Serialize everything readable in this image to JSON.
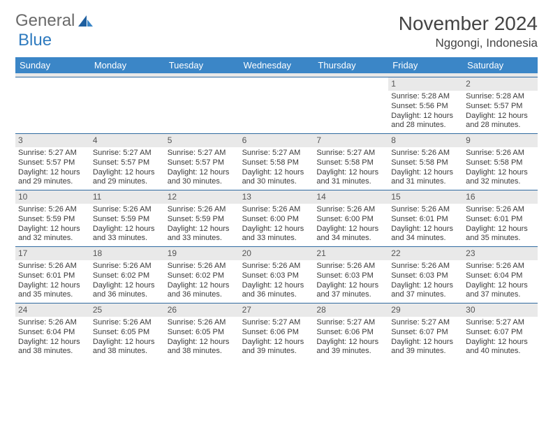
{
  "brand": {
    "part1": "General",
    "part2": "Blue"
  },
  "title": "November 2024",
  "location": "Nggongi, Indonesia",
  "weekdays": [
    "Sunday",
    "Monday",
    "Tuesday",
    "Wednesday",
    "Thursday",
    "Friday",
    "Saturday"
  ],
  "colors": {
    "header_bar": "#3b86c7",
    "daynum_bg": "#e9e9e9",
    "week_border": "#2f6aa0",
    "logo_gray": "#6a6a6a",
    "logo_blue": "#2f7bbf",
    "text": "#3a3a3a"
  },
  "weeks": [
    [
      {
        "n": "",
        "sr": "",
        "ss": "",
        "dl1": "",
        "dl2": ""
      },
      {
        "n": "",
        "sr": "",
        "ss": "",
        "dl1": "",
        "dl2": ""
      },
      {
        "n": "",
        "sr": "",
        "ss": "",
        "dl1": "",
        "dl2": ""
      },
      {
        "n": "",
        "sr": "",
        "ss": "",
        "dl1": "",
        "dl2": ""
      },
      {
        "n": "",
        "sr": "",
        "ss": "",
        "dl1": "",
        "dl2": ""
      },
      {
        "n": "1",
        "sr": "Sunrise: 5:28 AM",
        "ss": "Sunset: 5:56 PM",
        "dl1": "Daylight: 12 hours",
        "dl2": "and 28 minutes."
      },
      {
        "n": "2",
        "sr": "Sunrise: 5:28 AM",
        "ss": "Sunset: 5:57 PM",
        "dl1": "Daylight: 12 hours",
        "dl2": "and 28 minutes."
      }
    ],
    [
      {
        "n": "3",
        "sr": "Sunrise: 5:27 AM",
        "ss": "Sunset: 5:57 PM",
        "dl1": "Daylight: 12 hours",
        "dl2": "and 29 minutes."
      },
      {
        "n": "4",
        "sr": "Sunrise: 5:27 AM",
        "ss": "Sunset: 5:57 PM",
        "dl1": "Daylight: 12 hours",
        "dl2": "and 29 minutes."
      },
      {
        "n": "5",
        "sr": "Sunrise: 5:27 AM",
        "ss": "Sunset: 5:57 PM",
        "dl1": "Daylight: 12 hours",
        "dl2": "and 30 minutes."
      },
      {
        "n": "6",
        "sr": "Sunrise: 5:27 AM",
        "ss": "Sunset: 5:58 PM",
        "dl1": "Daylight: 12 hours",
        "dl2": "and 30 minutes."
      },
      {
        "n": "7",
        "sr": "Sunrise: 5:27 AM",
        "ss": "Sunset: 5:58 PM",
        "dl1": "Daylight: 12 hours",
        "dl2": "and 31 minutes."
      },
      {
        "n": "8",
        "sr": "Sunrise: 5:26 AM",
        "ss": "Sunset: 5:58 PM",
        "dl1": "Daylight: 12 hours",
        "dl2": "and 31 minutes."
      },
      {
        "n": "9",
        "sr": "Sunrise: 5:26 AM",
        "ss": "Sunset: 5:58 PM",
        "dl1": "Daylight: 12 hours",
        "dl2": "and 32 minutes."
      }
    ],
    [
      {
        "n": "10",
        "sr": "Sunrise: 5:26 AM",
        "ss": "Sunset: 5:59 PM",
        "dl1": "Daylight: 12 hours",
        "dl2": "and 32 minutes."
      },
      {
        "n": "11",
        "sr": "Sunrise: 5:26 AM",
        "ss": "Sunset: 5:59 PM",
        "dl1": "Daylight: 12 hours",
        "dl2": "and 33 minutes."
      },
      {
        "n": "12",
        "sr": "Sunrise: 5:26 AM",
        "ss": "Sunset: 5:59 PM",
        "dl1": "Daylight: 12 hours",
        "dl2": "and 33 minutes."
      },
      {
        "n": "13",
        "sr": "Sunrise: 5:26 AM",
        "ss": "Sunset: 6:00 PM",
        "dl1": "Daylight: 12 hours",
        "dl2": "and 33 minutes."
      },
      {
        "n": "14",
        "sr": "Sunrise: 5:26 AM",
        "ss": "Sunset: 6:00 PM",
        "dl1": "Daylight: 12 hours",
        "dl2": "and 34 minutes."
      },
      {
        "n": "15",
        "sr": "Sunrise: 5:26 AM",
        "ss": "Sunset: 6:01 PM",
        "dl1": "Daylight: 12 hours",
        "dl2": "and 34 minutes."
      },
      {
        "n": "16",
        "sr": "Sunrise: 5:26 AM",
        "ss": "Sunset: 6:01 PM",
        "dl1": "Daylight: 12 hours",
        "dl2": "and 35 minutes."
      }
    ],
    [
      {
        "n": "17",
        "sr": "Sunrise: 5:26 AM",
        "ss": "Sunset: 6:01 PM",
        "dl1": "Daylight: 12 hours",
        "dl2": "and 35 minutes."
      },
      {
        "n": "18",
        "sr": "Sunrise: 5:26 AM",
        "ss": "Sunset: 6:02 PM",
        "dl1": "Daylight: 12 hours",
        "dl2": "and 36 minutes."
      },
      {
        "n": "19",
        "sr": "Sunrise: 5:26 AM",
        "ss": "Sunset: 6:02 PM",
        "dl1": "Daylight: 12 hours",
        "dl2": "and 36 minutes."
      },
      {
        "n": "20",
        "sr": "Sunrise: 5:26 AM",
        "ss": "Sunset: 6:03 PM",
        "dl1": "Daylight: 12 hours",
        "dl2": "and 36 minutes."
      },
      {
        "n": "21",
        "sr": "Sunrise: 5:26 AM",
        "ss": "Sunset: 6:03 PM",
        "dl1": "Daylight: 12 hours",
        "dl2": "and 37 minutes."
      },
      {
        "n": "22",
        "sr": "Sunrise: 5:26 AM",
        "ss": "Sunset: 6:03 PM",
        "dl1": "Daylight: 12 hours",
        "dl2": "and 37 minutes."
      },
      {
        "n": "23",
        "sr": "Sunrise: 5:26 AM",
        "ss": "Sunset: 6:04 PM",
        "dl1": "Daylight: 12 hours",
        "dl2": "and 37 minutes."
      }
    ],
    [
      {
        "n": "24",
        "sr": "Sunrise: 5:26 AM",
        "ss": "Sunset: 6:04 PM",
        "dl1": "Daylight: 12 hours",
        "dl2": "and 38 minutes."
      },
      {
        "n": "25",
        "sr": "Sunrise: 5:26 AM",
        "ss": "Sunset: 6:05 PM",
        "dl1": "Daylight: 12 hours",
        "dl2": "and 38 minutes."
      },
      {
        "n": "26",
        "sr": "Sunrise: 5:26 AM",
        "ss": "Sunset: 6:05 PM",
        "dl1": "Daylight: 12 hours",
        "dl2": "and 38 minutes."
      },
      {
        "n": "27",
        "sr": "Sunrise: 5:27 AM",
        "ss": "Sunset: 6:06 PM",
        "dl1": "Daylight: 12 hours",
        "dl2": "and 39 minutes."
      },
      {
        "n": "28",
        "sr": "Sunrise: 5:27 AM",
        "ss": "Sunset: 6:06 PM",
        "dl1": "Daylight: 12 hours",
        "dl2": "and 39 minutes."
      },
      {
        "n": "29",
        "sr": "Sunrise: 5:27 AM",
        "ss": "Sunset: 6:07 PM",
        "dl1": "Daylight: 12 hours",
        "dl2": "and 39 minutes."
      },
      {
        "n": "30",
        "sr": "Sunrise: 5:27 AM",
        "ss": "Sunset: 6:07 PM",
        "dl1": "Daylight: 12 hours",
        "dl2": "and 40 minutes."
      }
    ]
  ]
}
